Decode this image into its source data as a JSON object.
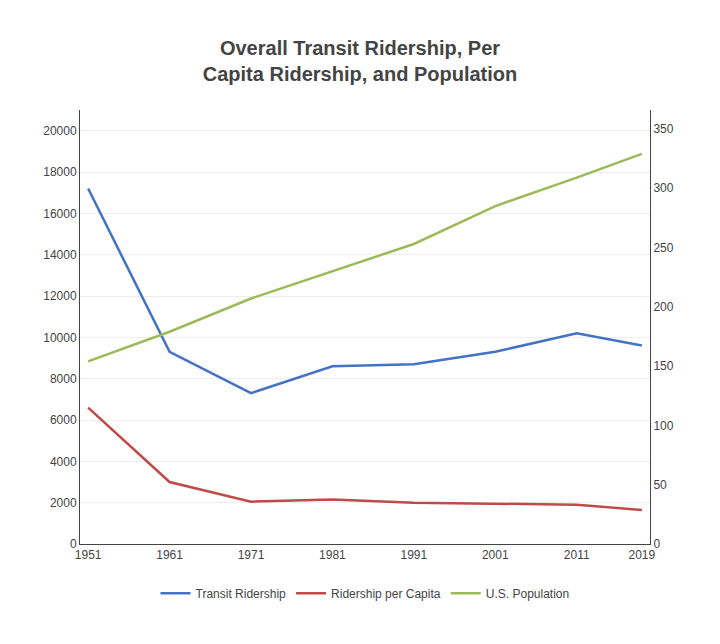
{
  "chart_data": {
    "type": "line",
    "title": "Overall Transit Ridership, Per\nCapita Ridership, and Population",
    "x": [
      1951,
      1961,
      1971,
      1981,
      1991,
      2001,
      2011,
      2019
    ],
    "series": [
      {
        "name": "Transit Ridership",
        "color": "#4472C4",
        "values": [
          17200,
          9300,
          7300,
          8600,
          8700,
          9300,
          10200,
          9600
        ]
      },
      {
        "name": "Ridership per Capita",
        "color": "#BE4B48",
        "values": [
          6600,
          3000,
          2050,
          2150,
          2000,
          1950,
          1900,
          1650
        ]
      },
      {
        "name": "U.S. Population",
        "color": "#9BBB59",
        "values": [
          154,
          179,
          207,
          230,
          253,
          285,
          309,
          329
        ],
        "axis": "y2"
      }
    ],
    "xlim": [
      1950,
      2020
    ],
    "xticks": [
      1951,
      1961,
      1971,
      1981,
      1991,
      2001,
      2011,
      2019
    ],
    "ylim": [
      0,
      21000
    ],
    "yticks": [
      0,
      2000,
      4000,
      6000,
      8000,
      10000,
      12000,
      14000,
      16000,
      18000,
      20000
    ],
    "y2lim": [
      0,
      366
    ],
    "y2ticks": [
      0,
      50,
      100,
      150,
      200,
      250,
      300,
      350
    ],
    "grid": true,
    "legend": "bottom"
  }
}
